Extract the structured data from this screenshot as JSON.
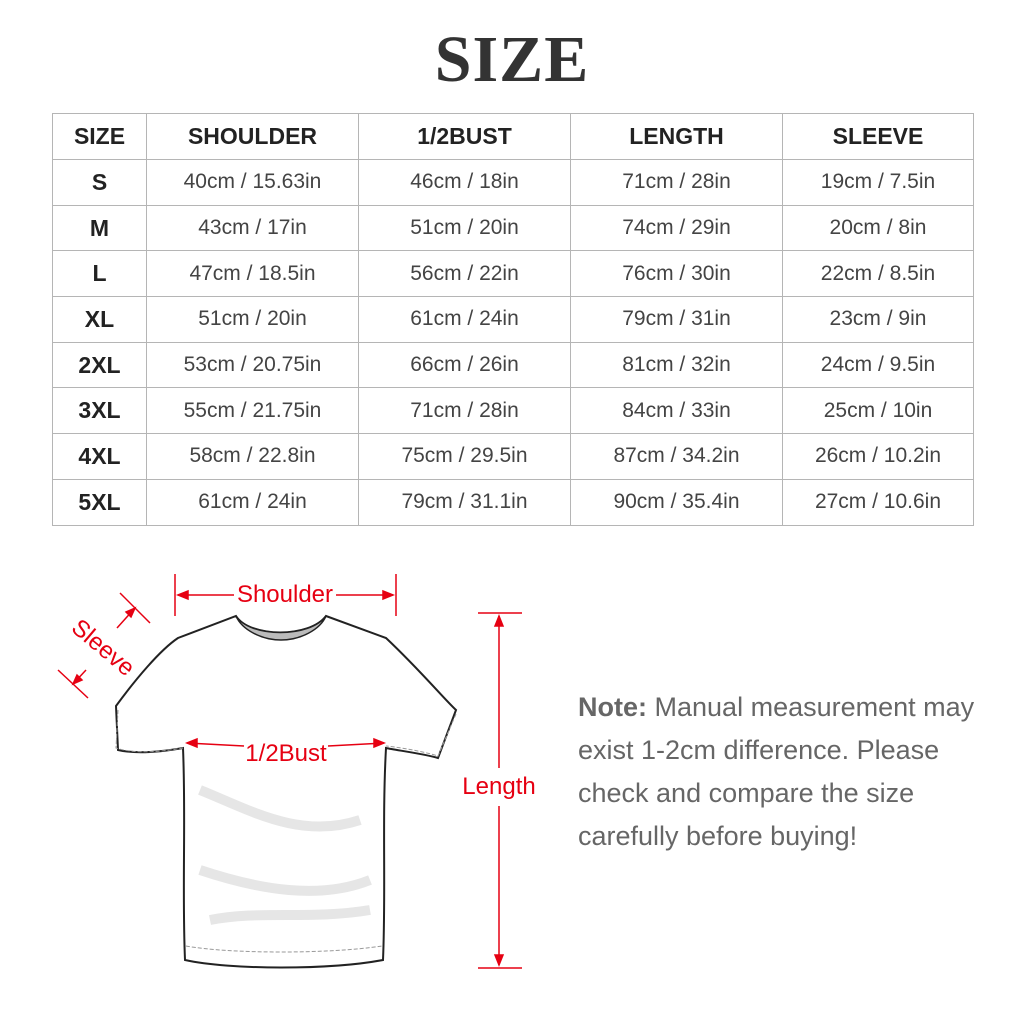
{
  "title": "SIZE",
  "table": {
    "headers": [
      "SIZE",
      "SHOULDER",
      "1/2BUST",
      "LENGTH",
      "SLEEVE"
    ],
    "rows": [
      [
        "S",
        "40cm / 15.63in",
        "46cm / 18in",
        "71cm / 28in",
        "19cm / 7.5in"
      ],
      [
        "M",
        "43cm / 17in",
        "51cm / 20in",
        "74cm / 29in",
        "20cm / 8in"
      ],
      [
        "L",
        "47cm / 18.5in",
        "56cm / 22in",
        "76cm / 30in",
        "22cm / 8.5in"
      ],
      [
        "XL",
        "51cm / 20in",
        "61cm / 24in",
        "79cm / 31in",
        "23cm / 9in"
      ],
      [
        "2XL",
        "53cm / 20.75in",
        "66cm / 26in",
        "81cm / 32in",
        "24cm / 9.5in"
      ],
      [
        "3XL",
        "55cm / 21.75in",
        "71cm / 28in",
        "84cm / 33in",
        "25cm / 10in"
      ],
      [
        "4XL",
        "58cm / 22.8in",
        "75cm / 29.5in",
        "87cm / 34.2in",
        "26cm / 10.2in"
      ],
      [
        "5XL",
        "61cm / 24in",
        "79cm / 31.1in",
        "90cm / 35.4in",
        "27cm / 10.6in"
      ]
    ]
  },
  "diagram": {
    "shoulder": "Shoulder",
    "sleeve": "Sleeve",
    "bust": "1/2Bust",
    "length": "Length",
    "accent_color": "#e60012"
  },
  "note": {
    "label": "Note:",
    "text": "Manual measurement may exist 1-2cm difference. Please check and compare the size carefully before buying!"
  }
}
